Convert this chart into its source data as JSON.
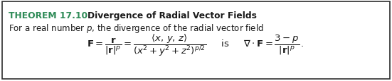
{
  "bg_color": "#ffffff",
  "border_color": "#2d2d2d",
  "teal_color": "#2E8B57",
  "text_color": "#1a1a1a",
  "title_teal": "THEOREM 17.10",
  "title_black": "    Divergence of Radial Vector Fields",
  "subtitle": "For a real number $p$, the divergence of the radial vector field",
  "figsize": [
    5.51,
    1.16
  ],
  "dpi": 100
}
